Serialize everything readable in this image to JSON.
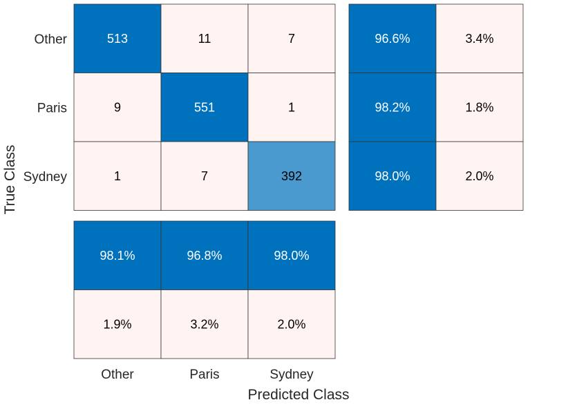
{
  "chart_data": {
    "type": "heatmap",
    "classes": [
      "Other",
      "Paris",
      "Sydney"
    ],
    "xlabel": "Predicted Class",
    "ylabel": "True Class",
    "matrix": [
      [
        513,
        11,
        7
      ],
      [
        9,
        551,
        1
      ],
      [
        1,
        7,
        392
      ]
    ],
    "row_summary": [
      [
        "96.6%",
        "3.4%"
      ],
      [
        "98.2%",
        "1.8%"
      ],
      [
        "98.0%",
        "2.0%"
      ]
    ],
    "column_summary": [
      [
        "98.1%",
        "96.8%",
        "98.0%"
      ],
      [
        "1.9%",
        "3.2%",
        "2.0%"
      ]
    ],
    "colors": {
      "strong": "#0072BD",
      "medium": "#4A9ACF",
      "light": "#FFF4F1",
      "grid": "#333333",
      "text_dark": "#000000",
      "text_light": "#FFFFFF",
      "axis_text": "#262626"
    }
  }
}
